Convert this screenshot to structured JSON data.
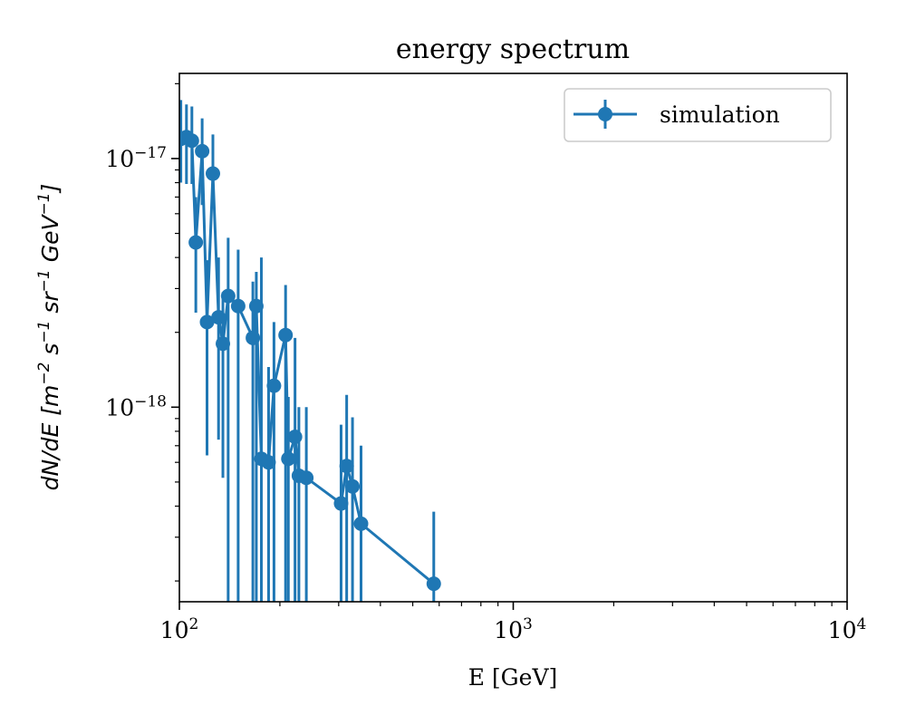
{
  "chart_data": {
    "type": "scatter",
    "title": "energy spectrum",
    "xlabel": "E [GeV]",
    "ylabel": "dN/dE [m^-2 s^-1 sr^-1 GeV^-1]",
    "xscale": "log",
    "yscale": "log",
    "xlim": [
      100,
      10000
    ],
    "ylim": [
      1.65e-19,
      2.2e-17
    ],
    "grid": false,
    "legend": {
      "location": "top-right",
      "entries": [
        "simulation"
      ]
    },
    "x_ticks": [
      {
        "value": 100,
        "base": "10",
        "exp": "2"
      },
      {
        "value": 1000,
        "base": "10",
        "exp": "3"
      },
      {
        "value": 10000,
        "base": "10",
        "exp": "4"
      }
    ],
    "y_ticks": [
      {
        "value": 1e-18,
        "base": "10",
        "exp": "−18"
      },
      {
        "value": 1e-17,
        "base": "10",
        "exp": "−17"
      }
    ],
    "series": [
      {
        "name": "simulation",
        "color": "#1f77b4",
        "marker": "circle",
        "points": [
          {
            "x": 101,
            "y": 1.2e-17,
            "ylo": 8e-18,
            "yhi": 1.72e-17
          },
          {
            "x": 105,
            "y": 1.22e-17,
            "ylo": 7.9e-18,
            "yhi": 1.65e-17
          },
          {
            "x": 109,
            "y": 1.18e-17,
            "ylo": 7.9e-18,
            "yhi": 1.62e-17
          },
          {
            "x": 112,
            "y": 4.6e-18,
            "ylo": 2.4e-18,
            "yhi": 7e-18
          },
          {
            "x": 117,
            "y": 1.07e-17,
            "ylo": 6.5e-18,
            "yhi": 1.45e-17
          },
          {
            "x": 121,
            "y": 2.2e-18,
            "ylo": 6.4e-19,
            "yhi": 3.9e-18
          },
          {
            "x": 126,
            "y": 8.7e-18,
            "ylo": 6.5e-18,
            "yhi": 1.25e-17
          },
          {
            "x": 131,
            "y": 2.3e-18,
            "ylo": 7.4e-19,
            "yhi": 4e-18
          },
          {
            "x": 135,
            "y": 1.8e-18,
            "ylo": 5.2e-19,
            "yhi": 2.9e-18
          },
          {
            "x": 140,
            "y": 2.8e-18,
            "ylo": 1.65e-19,
            "yhi": 4.8e-18
          },
          {
            "x": 150,
            "y": 2.55e-18,
            "ylo": 1.65e-19,
            "yhi": 4.3e-18
          },
          {
            "x": 166,
            "y": 1.9e-18,
            "ylo": 1.65e-19,
            "yhi": 3.2e-18
          },
          {
            "x": 170,
            "y": 2.55e-18,
            "ylo": 1.65e-19,
            "yhi": 3.5e-18
          },
          {
            "x": 176,
            "y": 6.2e-19,
            "ylo": 1.65e-19,
            "yhi": 4e-18
          },
          {
            "x": 185,
            "y": 6e-19,
            "ylo": 1.65e-19,
            "yhi": 1.45e-18
          },
          {
            "x": 192,
            "y": 1.22e-18,
            "ylo": 1.65e-19,
            "yhi": 2.2e-18
          },
          {
            "x": 208,
            "y": 1.95e-18,
            "ylo": 1.65e-19,
            "yhi": 3.1e-18
          },
          {
            "x": 212,
            "y": 6.2e-19,
            "ylo": 1.65e-19,
            "yhi": 1.1e-18
          },
          {
            "x": 222,
            "y": 7.6e-19,
            "ylo": 1.65e-19,
            "yhi": 1.9e-18
          },
          {
            "x": 228,
            "y": 5.3e-19,
            "ylo": 1.65e-19,
            "yhi": 1e-18
          },
          {
            "x": 240,
            "y": 5.2e-19,
            "ylo": 1.65e-19,
            "yhi": 1e-18
          },
          {
            "x": 305,
            "y": 4.1e-19,
            "ylo": 1.65e-19,
            "yhi": 8.5e-19
          },
          {
            "x": 317,
            "y": 5.8e-19,
            "ylo": 1.65e-19,
            "yhi": 1.12e-18
          },
          {
            "x": 330,
            "y": 4.8e-19,
            "ylo": 1.65e-19,
            "yhi": 9.1e-19
          },
          {
            "x": 350,
            "y": 3.4e-19,
            "ylo": 1.65e-19,
            "yhi": 7e-19
          },
          {
            "x": 578,
            "y": 1.95e-19,
            "ylo": 1.65e-19,
            "yhi": 3.8e-19
          }
        ]
      }
    ]
  }
}
